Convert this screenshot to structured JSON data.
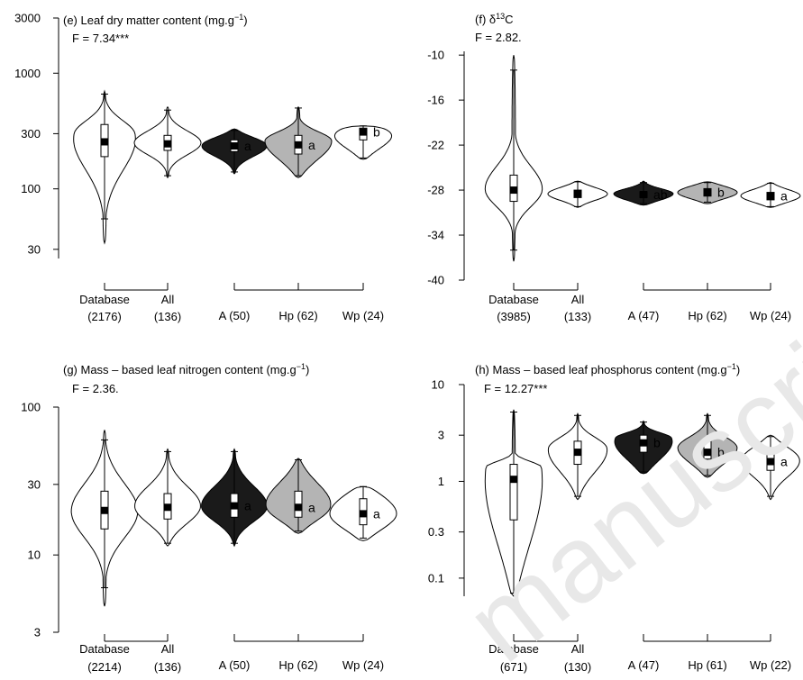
{
  "watermark": "manuscript",
  "colors": {
    "white": "#ffffff",
    "black": "#1a1a1a",
    "gray": "#b4b4b4"
  },
  "chart_data": [
    {
      "type": "violin",
      "panel_title": "(e) Leaf dry matter content (mg.g",
      "panel_title_sup": "−1",
      "panel_title_end": ")",
      "stat": "F = 7.34***",
      "scale": "log",
      "ylim": [
        25,
        3000
      ],
      "yticks": [
        30,
        100,
        300,
        1000,
        3000
      ],
      "ytick_labels": [
        "30",
        "100",
        "300",
        "1000",
        "3000"
      ],
      "groups": [
        {
          "label": "Database",
          "n": "(2176)",
          "fill": "white",
          "min": 34,
          "q1": 190,
          "median": 255,
          "q3": 360,
          "max": 700,
          "wmin": 55,
          "wmax": 660,
          "mode": 300,
          "width": 1.0,
          "letter": ""
        },
        {
          "label": "All",
          "n": "(136)",
          "fill": "white",
          "min": 125,
          "q1": 215,
          "median": 245,
          "q3": 290,
          "max": 510,
          "wmin": 130,
          "wmax": 480,
          "mode": 250,
          "width": 1.0,
          "letter": ""
        },
        {
          "label": "A (50)",
          "n": "",
          "fill": "black",
          "min": 135,
          "q1": 210,
          "median": 235,
          "q3": 265,
          "max": 330,
          "wmin": 140,
          "wmax": 320,
          "mode": 240,
          "width": 1.0,
          "letter": "a"
        },
        {
          "label": "Hp (62)",
          "n": "",
          "fill": "gray",
          "min": 125,
          "q1": 200,
          "median": 240,
          "q3": 290,
          "max": 510,
          "wmin": 130,
          "wmax": 500,
          "mode": 260,
          "width": 1.0,
          "letter": "a"
        },
        {
          "label": "Wp (24)",
          "n": "",
          "fill": "white",
          "min": 180,
          "q1": 265,
          "median": 310,
          "q3": 335,
          "max": 350,
          "wmin": 185,
          "wmax": 350,
          "mode": 330,
          "width": 1.0,
          "letter": "b"
        }
      ]
    },
    {
      "type": "violin",
      "panel_title": "(f) δ",
      "panel_title_sup": "13",
      "panel_title_end": "C",
      "stat": "F = 2.82.",
      "scale": "linear",
      "ylim": [
        -40,
        -9.5
      ],
      "yticks": [
        -40,
        -34,
        -28,
        -22,
        -16,
        -10
      ],
      "ytick_labels": [
        "-40",
        "-34",
        "-28",
        "-22",
        "-16",
        "-10"
      ],
      "groups": [
        {
          "label": "Database",
          "n": "(3985)",
          "fill": "white",
          "min": -37.5,
          "q1": -29.5,
          "median": -28,
          "q3": -26,
          "max": -10,
          "wmin": -36,
          "wmax": -12,
          "mode": -28,
          "width": 1.0,
          "letter": ""
        },
        {
          "label": "All",
          "n": "(133)",
          "fill": "white",
          "min": -30.3,
          "q1": -29,
          "median": -28.5,
          "q3": -28,
          "max": -26.8,
          "wmin": -30.2,
          "wmax": -26.9,
          "mode": -28.5,
          "width": 1.0,
          "letter": ""
        },
        {
          "label": "A (47)",
          "n": "",
          "fill": "black",
          "min": -30,
          "q1": -29,
          "median": -28.6,
          "q3": -28.2,
          "max": -26.8,
          "wmin": -29.8,
          "wmax": -27,
          "mode": -28.5,
          "width": 1.0,
          "letter": "ab"
        },
        {
          "label": "Hp (62)",
          "n": "",
          "fill": "gray",
          "min": -29.8,
          "q1": -28.8,
          "median": -28.3,
          "q3": -27.8,
          "max": -26.9,
          "wmin": -29.6,
          "wmax": -27,
          "mode": -28.3,
          "width": 1.0,
          "letter": "b"
        },
        {
          "label": "Wp (24)",
          "n": "",
          "fill": "white",
          "min": -30.3,
          "q1": -29.3,
          "median": -28.8,
          "q3": -28.3,
          "max": -27,
          "wmin": -30.2,
          "wmax": -27.1,
          "mode": -28.8,
          "width": 1.0,
          "letter": "a"
        }
      ]
    },
    {
      "type": "violin",
      "panel_title": "(g) Mass – based leaf nitrogen content (mg.g",
      "panel_title_sup": "−1",
      "panel_title_end": ")",
      "stat": "F = 2.36.",
      "scale": "log",
      "ylim": [
        3,
        100
      ],
      "yticks": [
        3,
        10,
        30,
        100
      ],
      "ytick_labels": [
        "3",
        "10",
        "30",
        "100"
      ],
      "groups": [
        {
          "label": "Database",
          "n": "(2214)",
          "fill": "white",
          "min": 4.5,
          "q1": 15,
          "median": 20,
          "q3": 27,
          "max": 70,
          "wmin": 6,
          "wmax": 60,
          "mode": 20,
          "width": 1.0,
          "letter": ""
        },
        {
          "label": "All",
          "n": "(136)",
          "fill": "white",
          "min": 11.5,
          "q1": 17.5,
          "median": 21,
          "q3": 26,
          "max": 52,
          "wmin": 12,
          "wmax": 50,
          "mode": 21,
          "width": 1.0,
          "letter": ""
        },
        {
          "label": "A (50)",
          "n": "",
          "fill": "black",
          "min": 11.5,
          "q1": 18,
          "median": 21.5,
          "q3": 26,
          "max": 52,
          "wmin": 12,
          "wmax": 50,
          "mode": 21,
          "width": 1.0,
          "letter": "a"
        },
        {
          "label": "Hp (62)",
          "n": "",
          "fill": "gray",
          "min": 14,
          "q1": 18,
          "median": 21,
          "q3": 27,
          "max": 45,
          "wmin": 14.5,
          "wmax": 44,
          "mode": 21,
          "width": 1.0,
          "letter": "a"
        },
        {
          "label": "Wp (24)",
          "n": "",
          "fill": "white",
          "min": 12.5,
          "q1": 16,
          "median": 19,
          "q3": 24,
          "max": 29,
          "wmin": 13,
          "wmax": 29,
          "mode": 19,
          "width": 1.0,
          "letter": "a"
        }
      ]
    },
    {
      "type": "violin",
      "panel_title": "(h) Mass – based leaf phosphorus content (mg.g",
      "panel_title_sup": "−1",
      "panel_title_end": ")",
      "stat": "F = 12.27***",
      "scale": "log",
      "ylim": [
        0.065,
        10
      ],
      "yticks": [
        0.1,
        0.3,
        1,
        3,
        10
      ],
      "ytick_labels": [
        "0.1",
        "0.3",
        "1",
        "3",
        "10"
      ],
      "groups": [
        {
          "label": "Database",
          "n": "(671)",
          "fill": "white",
          "min": 0.065,
          "q1": 0.4,
          "median": 1.05,
          "q3": 1.5,
          "max": 5.5,
          "wmin": 0.07,
          "wmax": 5.2,
          "mode": 1.4,
          "width": 1.0,
          "letter": ""
        },
        {
          "label": "All",
          "n": "(130)",
          "fill": "white",
          "min": 0.65,
          "q1": 1.5,
          "median": 2.0,
          "q3": 2.6,
          "max": 5,
          "wmin": 0.7,
          "wmax": 4.8,
          "mode": 2.2,
          "width": 1.0,
          "letter": ""
        },
        {
          "label": "A (47)",
          "n": "",
          "fill": "black",
          "min": 1.2,
          "q1": 2.0,
          "median": 2.5,
          "q3": 3.0,
          "max": 4.2,
          "wmin": 1.25,
          "wmax": 4.1,
          "mode": 2.8,
          "width": 1.0,
          "letter": "b"
        },
        {
          "label": "Hp (61)",
          "n": "",
          "fill": "gray",
          "min": 1.1,
          "q1": 1.7,
          "median": 2.0,
          "q3": 2.6,
          "max": 5,
          "wmin": 1.15,
          "wmax": 4.8,
          "mode": 2.2,
          "width": 1.0,
          "letter": "b"
        },
        {
          "label": "Wp (22)",
          "n": "",
          "fill": "white",
          "min": 0.65,
          "q1": 1.3,
          "median": 1.6,
          "q3": 2.1,
          "max": 3.0,
          "wmin": 0.7,
          "wmax": 2.9,
          "mode": 1.7,
          "width": 1.0,
          "letter": "a"
        }
      ]
    }
  ]
}
